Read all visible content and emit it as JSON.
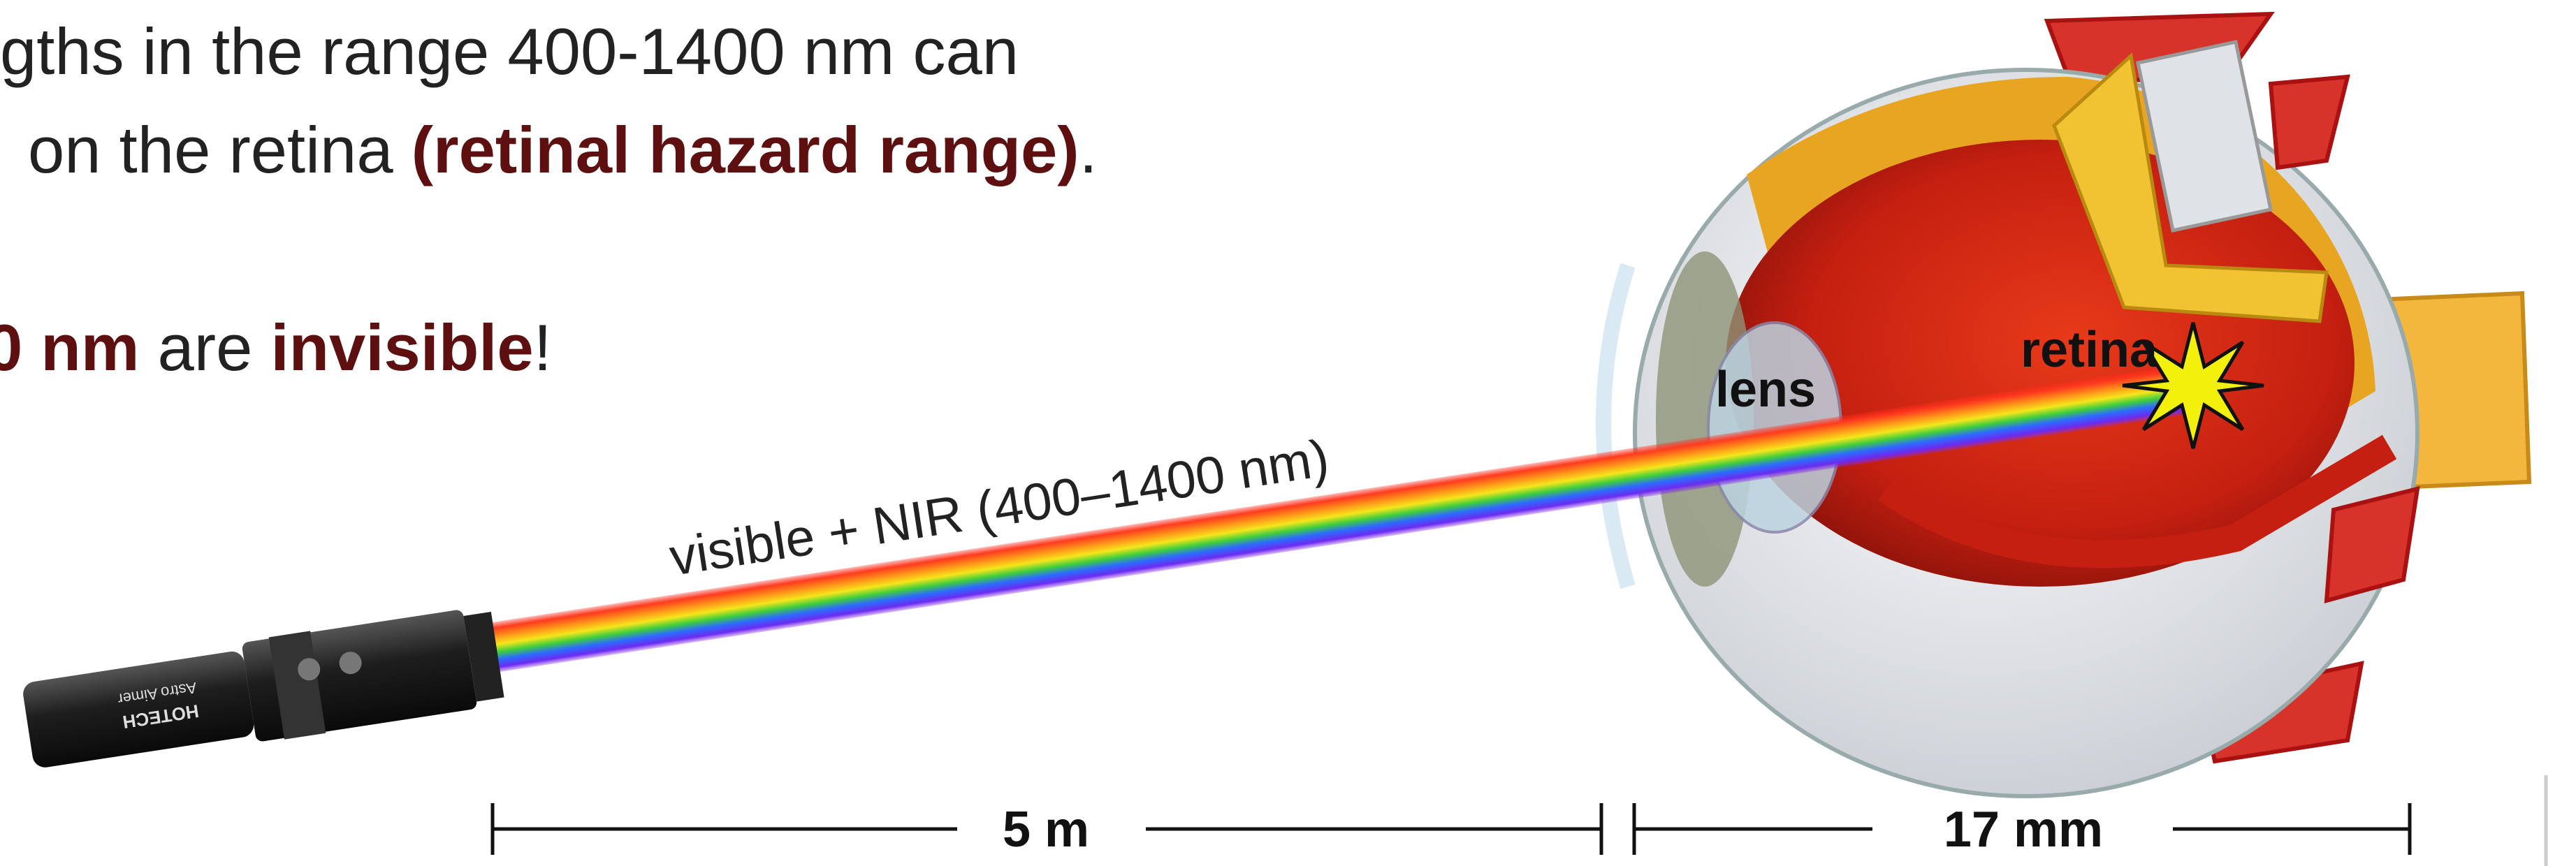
{
  "slide": {
    "line1": "gths in the range 400-1400 nm can",
    "line2": {
      "a": "on the retina ",
      "b": "(retinal hazard range)",
      "c": "."
    },
    "line3": {
      "a": "0 nm",
      "b": " are ",
      "c": "invisible",
      "d": "!"
    },
    "beam_label": "visible + NIR (400–1400 nm)",
    "lens_label": "lens",
    "retina_label": "retina",
    "pointer_brand": "HOTECH",
    "pointer_model": "Astro Aimer",
    "scale_left": "5 m",
    "scale_right": "17 mm"
  }
}
